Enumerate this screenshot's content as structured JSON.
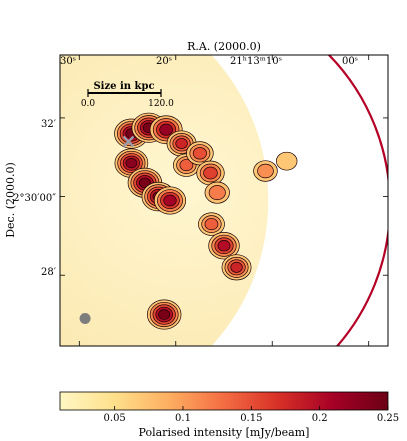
{
  "chart_data": {
    "type": "heatmap",
    "title": "",
    "x_axis": {
      "label": "R.A. (2000.0)",
      "position": "top",
      "ticks": [
        {
          "label": "30ˢ",
          "value": 30
        },
        {
          "label": "20ˢ",
          "value": 20
        },
        {
          "label": "21ʰ13ᵐ10ˢ",
          "value": 10
        },
        {
          "label": "00ˢ",
          "value": 0
        }
      ],
      "range": [
        32,
        -2
      ]
    },
    "y_axis": {
      "label": "Dec. (2000.0)",
      "ticks": [
        {
          "label": "32′",
          "value": 32
        },
        {
          "label": "2°30′00″",
          "value": 30
        },
        {
          "label": "28′",
          "value": 28
        }
      ],
      "range": [
        26.2,
        33.6
      ]
    },
    "colorbar": {
      "label": "Polarised intensity [mJy/beam]",
      "ticks": [
        "0.05",
        "0.1",
        "0.15",
        "0.2",
        "0.25"
      ],
      "tick_values": [
        0.05,
        0.1,
        0.15,
        0.2,
        0.25
      ],
      "range": [
        0.01,
        0.25
      ],
      "colormap": "YlOrRd",
      "colors": [
        "#fff7c4",
        "#fee08b",
        "#fdae61",
        "#f46d43",
        "#d73027",
        "#a50026",
        "#6b0014"
      ]
    },
    "scale_bar": {
      "title": "Size in kpc",
      "start_label": "0.0",
      "end_label": "120.0"
    },
    "emission_blobs": [
      {
        "ra": 24.6,
        "dec": 31.6,
        "intensity": 0.24
      },
      {
        "ra": 22.8,
        "dec": 31.75,
        "intensity": 0.24
      },
      {
        "ra": 21.0,
        "dec": 31.7,
        "intensity": 0.22
      },
      {
        "ra": 19.4,
        "dec": 31.35,
        "intensity": 0.18
      },
      {
        "ra": 24.6,
        "dec": 30.85,
        "intensity": 0.23
      },
      {
        "ra": 23.2,
        "dec": 30.35,
        "intensity": 0.24
      },
      {
        "ra": 21.8,
        "dec": 30.0,
        "intensity": 0.23
      },
      {
        "ra": 20.6,
        "dec": 29.9,
        "intensity": 0.21
      },
      {
        "ra": 18.9,
        "dec": 30.8,
        "intensity": 0.14
      },
      {
        "ra": 17.5,
        "dec": 31.1,
        "intensity": 0.15
      },
      {
        "ra": 16.4,
        "dec": 30.6,
        "intensity": 0.16
      },
      {
        "ra": 15.7,
        "dec": 30.1,
        "intensity": 0.12
      },
      {
        "ra": 16.3,
        "dec": 29.3,
        "intensity": 0.14
      },
      {
        "ra": 15.0,
        "dec": 28.75,
        "intensity": 0.2
      },
      {
        "ra": 13.7,
        "dec": 28.2,
        "intensity": 0.18
      },
      {
        "ra": 21.2,
        "dec": 27.0,
        "intensity": 0.24
      },
      {
        "ra": 10.7,
        "dec": 30.65,
        "intensity": 0.11
      },
      {
        "ra": 8.5,
        "dec": 30.9,
        "intensity": 0.07
      }
    ],
    "markers": [
      {
        "type": "cross",
        "ra": 24.9,
        "dec": 31.4
      },
      {
        "type": "beam",
        "ra": 29.4,
        "dec": 26.9
      }
    ]
  }
}
